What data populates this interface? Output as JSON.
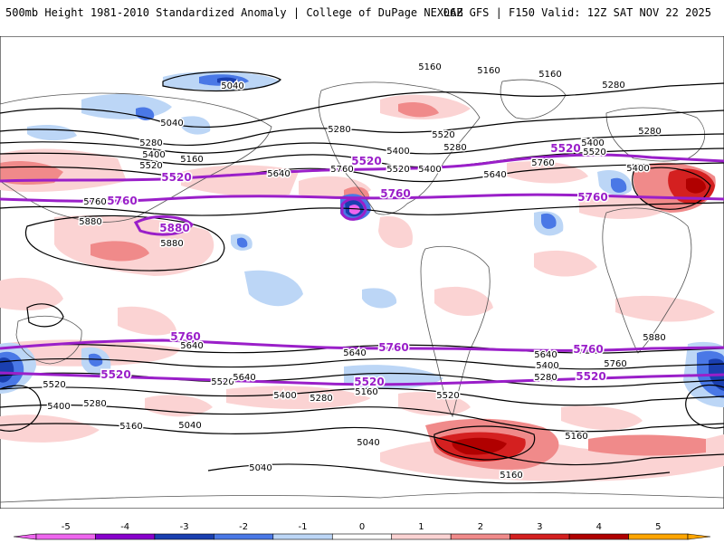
{
  "header": {
    "left_title": "500mb Height 1981-2010 Standardized Anomaly | College of DuPage NEXLAB",
    "right_title": "06Z GFS | F150 Valid: 12Z SAT NOV 22 2025"
  },
  "colors": {
    "neg5": "#ee66ee",
    "neg4": "#8800cc",
    "neg3": "#1a3fb0",
    "neg2": "#4a78e6",
    "neg1": "#bcd6f6",
    "zero": "#ffffff",
    "pos1": "#fbd3d3",
    "pos2": "#f08a8a",
    "pos3": "#d42020",
    "pos4": "#b00000",
    "pos5": "#ffa500",
    "highlight_contour": "#9a1fc9",
    "contour": "#000000",
    "land_border": "#555555"
  },
  "colorbar": {
    "ticks": [
      "-5",
      "-4",
      "-3",
      "-2",
      "-1",
      "0",
      "1",
      "2",
      "3",
      "4",
      "5"
    ]
  },
  "contour_labels": [
    {
      "id": "a1",
      "text": "5160"
    },
    {
      "id": "a2",
      "text": "5160"
    },
    {
      "id": "a3",
      "text": "5040"
    },
    {
      "id": "a4",
      "text": "5040"
    },
    {
      "id": "a5",
      "text": "5280"
    },
    {
      "id": "a6",
      "text": "5280"
    },
    {
      "id": "a7",
      "text": "5400"
    },
    {
      "id": "a8",
      "text": "5520"
    },
    {
      "id": "a9",
      "text": "5160"
    },
    {
      "id": "a10",
      "text": "5280"
    },
    {
      "id": "a11",
      "text": "5400"
    },
    {
      "id": "a12",
      "text": "5520"
    },
    {
      "id": "a13",
      "text": "5640"
    },
    {
      "id": "a14",
      "text": "5760"
    },
    {
      "id": "a15",
      "text": "5280"
    },
    {
      "id": "a16",
      "text": "5400"
    },
    {
      "id": "a17",
      "text": "5520"
    },
    {
      "id": "a18",
      "text": "5640"
    },
    {
      "id": "a19",
      "text": "5760"
    },
    {
      "id": "a20",
      "text": "5400"
    },
    {
      "id": "a21",
      "text": "5520"
    },
    {
      "id": "a22",
      "text": "5280"
    },
    {
      "id": "a23",
      "text": "5880"
    },
    {
      "id": "a24",
      "text": "5880"
    },
    {
      "id": "a25",
      "text": "5760"
    },
    {
      "id": "a26",
      "text": "5640"
    },
    {
      "id": "a27",
      "text": "5520"
    },
    {
      "id": "a28",
      "text": "5400"
    },
    {
      "id": "a29",
      "text": "5280"
    },
    {
      "id": "a30",
      "text": "5160"
    },
    {
      "id": "a31",
      "text": "5040"
    },
    {
      "id": "a32",
      "text": "5040"
    },
    {
      "id": "a33",
      "text": "5160"
    },
    {
      "id": "a34",
      "text": "5520"
    },
    {
      "id": "a35",
      "text": "5400"
    },
    {
      "id": "a36",
      "text": "5280"
    },
    {
      "id": "a37",
      "text": "5160"
    },
    {
      "id": "a38",
      "text": "5040"
    },
    {
      "id": "a39",
      "text": "5160"
    },
    {
      "id": "a40",
      "text": "5640"
    },
    {
      "id": "a41",
      "text": "5400"
    },
    {
      "id": "a42",
      "text": "5280"
    },
    {
      "id": "a43",
      "text": "5760"
    },
    {
      "id": "a44",
      "text": "5640"
    },
    {
      "id": "a45",
      "text": "5880"
    },
    {
      "id": "a46",
      "text": "5520"
    },
    {
      "id": "a47",
      "text": "5160"
    },
    {
      "id": "a48",
      "text": "5160"
    },
    {
      "id": "a49",
      "text": "5640"
    },
    {
      "id": "a50",
      "text": "5400"
    }
  ],
  "highlight_labels": [
    {
      "id": "h1",
      "text": "5520"
    },
    {
      "id": "h2",
      "text": "5520"
    },
    {
      "id": "h3",
      "text": "5520"
    },
    {
      "id": "h4",
      "text": "5760"
    },
    {
      "id": "h5",
      "text": "5760"
    },
    {
      "id": "h6",
      "text": "5760"
    },
    {
      "id": "h7",
      "text": "5880"
    },
    {
      "id": "h8",
      "text": "5760"
    },
    {
      "id": "h9",
      "text": "5760"
    },
    {
      "id": "h10",
      "text": "5760"
    },
    {
      "id": "h11",
      "text": "5520"
    },
    {
      "id": "h12",
      "text": "5520"
    },
    {
      "id": "h13",
      "text": "5520"
    }
  ]
}
